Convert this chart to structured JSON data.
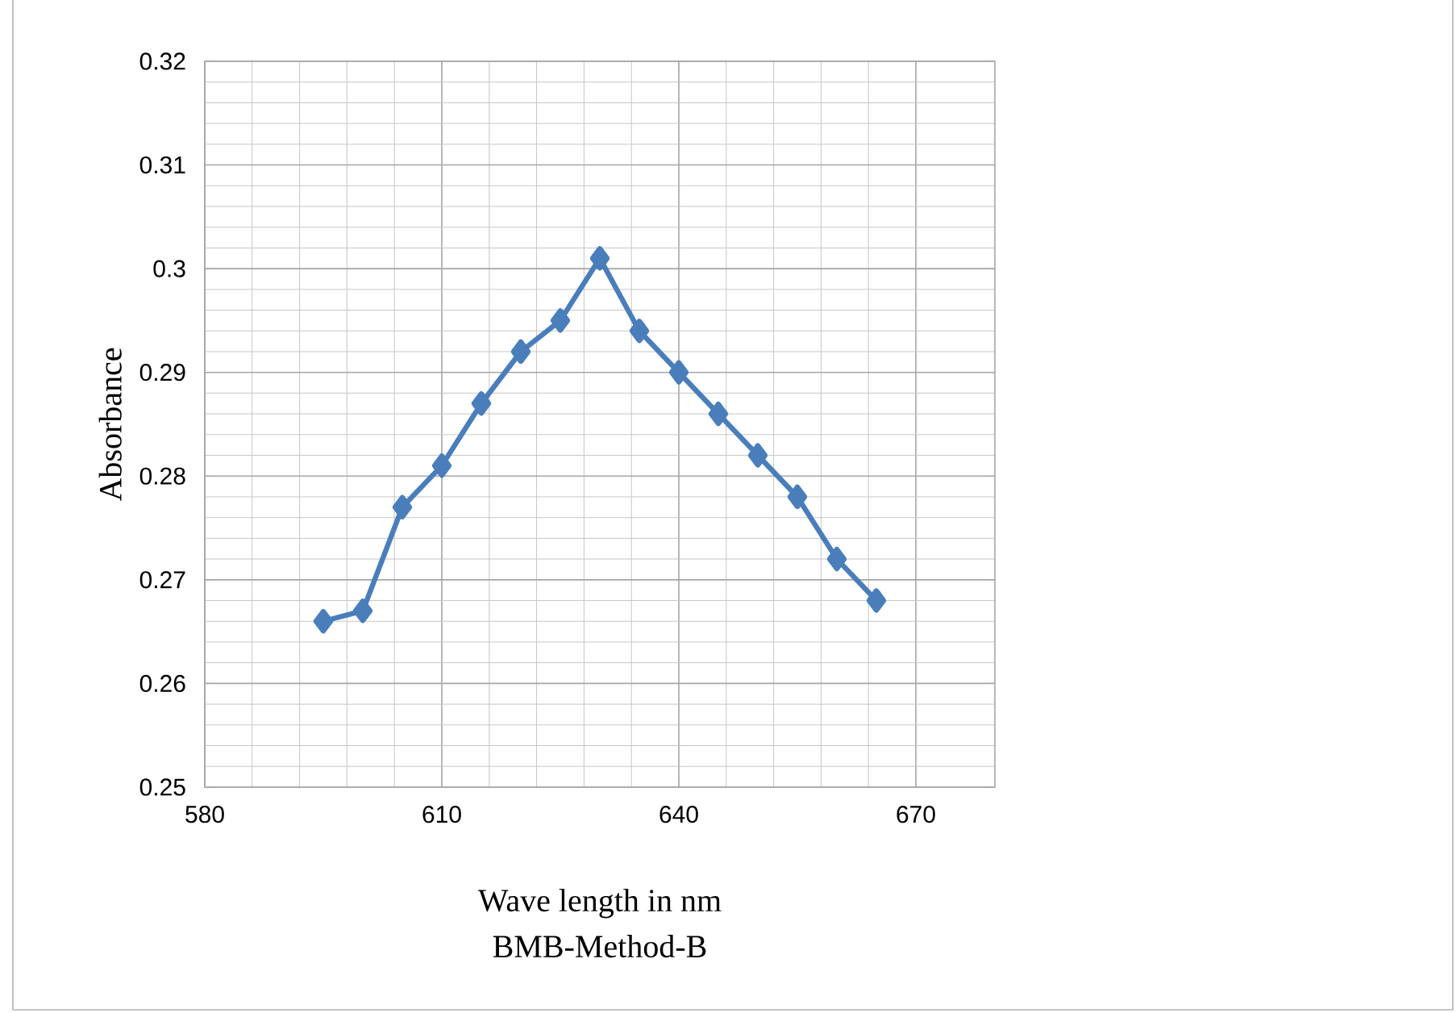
{
  "chart_data": {
    "type": "line",
    "xlabel": "Wave length in nm",
    "ylabel": "Absorbance",
    "annotations": [
      "BMB-Method-B"
    ],
    "x": [
      595,
      600,
      605,
      610,
      615,
      620,
      625,
      630,
      635,
      640,
      645,
      650,
      655,
      660,
      665
    ],
    "series": [
      {
        "color": "#4a7ebb",
        "values": [
          0.266,
          0.267,
          0.277,
          0.281,
          0.287,
          0.292,
          0.295,
          0.301,
          0.294,
          0.29,
          0.286,
          0.282,
          0.278,
          0.272,
          0.268
        ]
      }
    ],
    "xlim": [
      580,
      680
    ],
    "ylim": [
      0.25,
      0.32
    ],
    "xticks": [
      580,
      610,
      640,
      670
    ],
    "yticks": [
      0.25,
      0.26,
      0.27,
      0.28,
      0.29,
      0.3,
      0.31,
      0.32
    ],
    "grid": true,
    "marker": "diamond",
    "line_style": "solid"
  }
}
